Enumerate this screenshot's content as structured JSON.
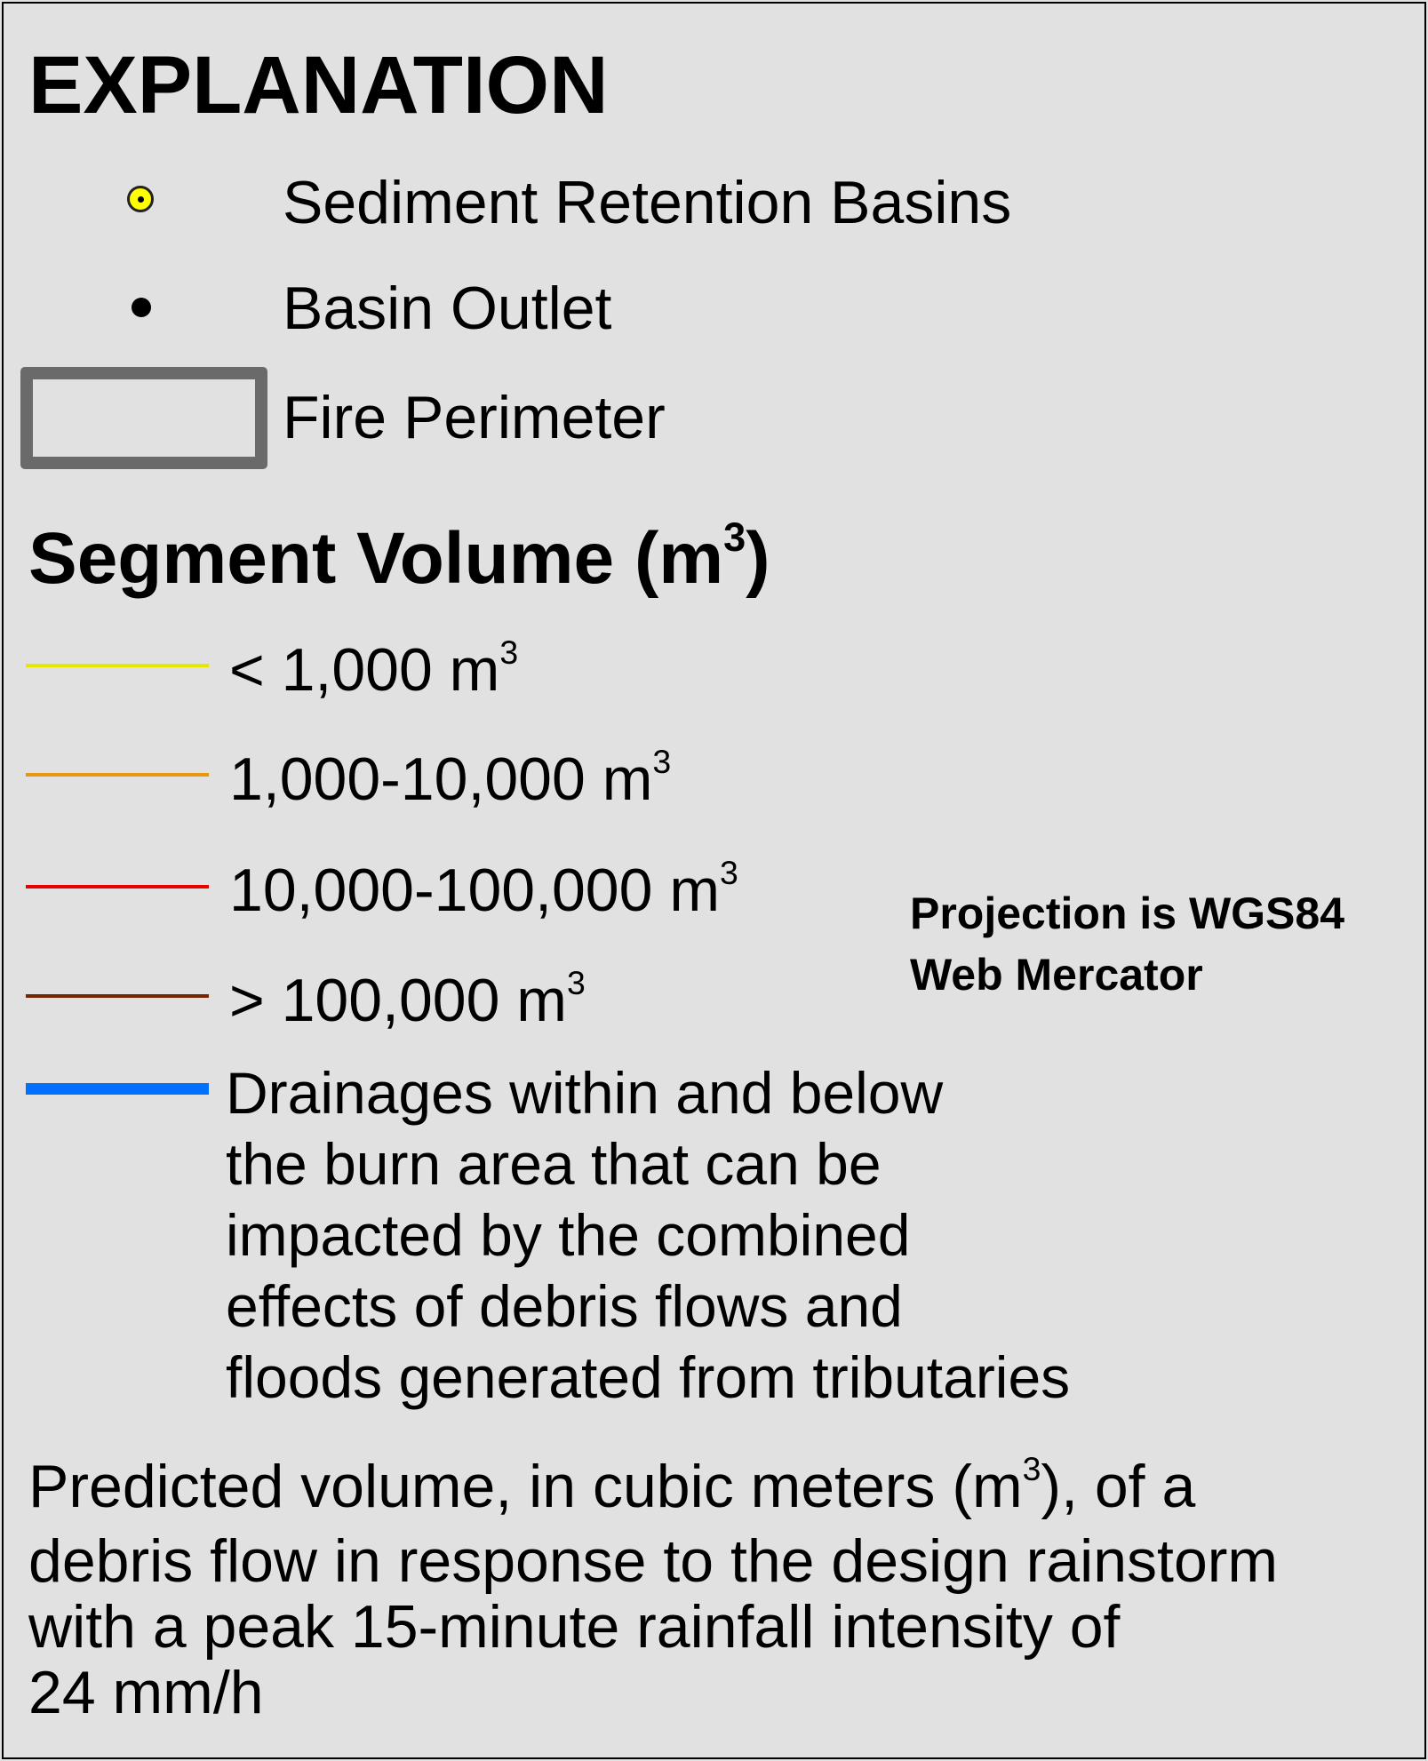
{
  "title": "EXPLANATION",
  "symbols": {
    "basins_label": "Sediment Retention Basins",
    "outlet_label": "Basin Outlet",
    "fire_label": "Fire Perimeter",
    "basin_fill": "#ffff00",
    "fire_color": "#6a6a6a"
  },
  "segment_volume": {
    "title": "Segment Volume (m",
    "title_sup": "3",
    "title_close": ")",
    "ranges": [
      {
        "label": "< 1,000 m",
        "sup": "3",
        "color": "#e6e600"
      },
      {
        "label": "1,000-10,000 m",
        "sup": "3",
        "color": "#e8960c"
      },
      {
        "label": "10,000-100,000 m",
        "sup": "3",
        "color": "#e60000"
      },
      {
        "label": "> 100,000 m",
        "sup": "3",
        "color": "#732600"
      }
    ]
  },
  "drainage": {
    "color": "#0070ff",
    "text": "Drainages within and below\nthe burn area that can be\nimpacted by the combined\neffects of debris flows and\nfloods generated from tributaries"
  },
  "projection": {
    "line1": "Projection is WGS84",
    "line2": "Web Mercator"
  },
  "note": {
    "part1": "Predicted volume, in cubic meters (m",
    "sup": "3",
    "part2": "), of a\ndebris flow in response to the design rainstorm\nwith a peak 15-minute rainfall intensity of\n24 mm/h"
  }
}
